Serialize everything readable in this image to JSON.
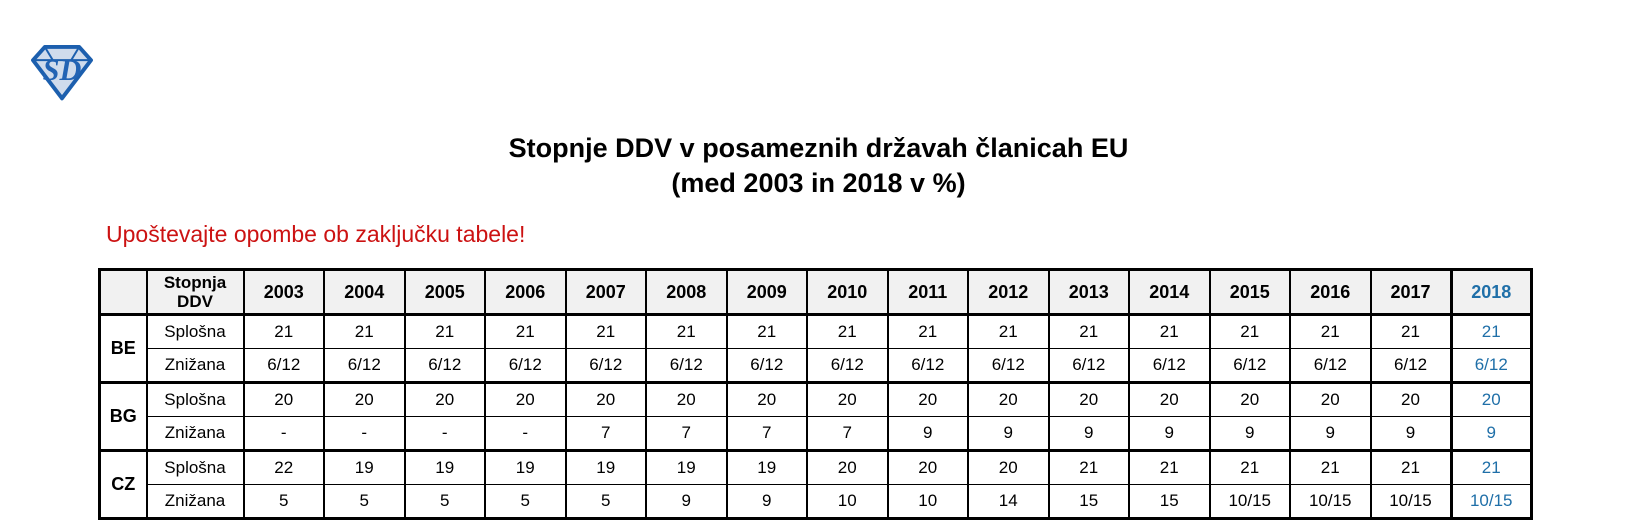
{
  "logo": {
    "letters": "SD",
    "outline_color": "#1c5fae",
    "fill_color": "#cfdbec",
    "letter_color": "#2263b4"
  },
  "title": {
    "line1": "Stopnje DDV v posameznih državah članicah EU",
    "line2": "(med 2003 in 2018 v %)"
  },
  "note": {
    "text": "Upoštevajte opombe ob zaključku tabele!",
    "color": "#cc1212"
  },
  "table": {
    "corner_label": "",
    "rate_type_header": "Stopnja DDV",
    "year_headers": [
      "2003",
      "2004",
      "2005",
      "2006",
      "2007",
      "2008",
      "2009",
      "2010",
      "2011",
      "2012",
      "2013",
      "2014",
      "2015",
      "2016",
      "2017",
      "2018"
    ],
    "highlight_year": "2018",
    "highlight_color": "#1f6fa8",
    "header_bg": "#f1f1f1",
    "border_color": "#000000",
    "countries": [
      {
        "code": "BE",
        "rows": [
          {
            "label": "Splošna",
            "values": [
              "21",
              "21",
              "21",
              "21",
              "21",
              "21",
              "21",
              "21",
              "21",
              "21",
              "21",
              "21",
              "21",
              "21",
              "21",
              "21"
            ]
          },
          {
            "label": "Znižana",
            "values": [
              "6/12",
              "6/12",
              "6/12",
              "6/12",
              "6/12",
              "6/12",
              "6/12",
              "6/12",
              "6/12",
              "6/12",
              "6/12",
              "6/12",
              "6/12",
              "6/12",
              "6/12",
              "6/12"
            ]
          }
        ]
      },
      {
        "code": "BG",
        "rows": [
          {
            "label": "Splošna",
            "values": [
              "20",
              "20",
              "20",
              "20",
              "20",
              "20",
              "20",
              "20",
              "20",
              "20",
              "20",
              "20",
              "20",
              "20",
              "20",
              "20"
            ]
          },
          {
            "label": "Znižana",
            "values": [
              "-",
              "-",
              "-",
              "-",
              "7",
              "7",
              "7",
              "7",
              "9",
              "9",
              "9",
              "9",
              "9",
              "9",
              "9",
              "9"
            ]
          }
        ]
      },
      {
        "code": "CZ",
        "rows": [
          {
            "label": "Splošna",
            "values": [
              "22",
              "19",
              "19",
              "19",
              "19",
              "19",
              "19",
              "20",
              "20",
              "20",
              "21",
              "21",
              "21",
              "21",
              "21",
              "21"
            ]
          },
          {
            "label": "Znižana",
            "values": [
              "5",
              "5",
              "5",
              "5",
              "5",
              "9",
              "9",
              "10",
              "10",
              "14",
              "15",
              "15",
              "10/15",
              "10/15",
              "10/15",
              "10/15"
            ]
          }
        ]
      }
    ]
  }
}
